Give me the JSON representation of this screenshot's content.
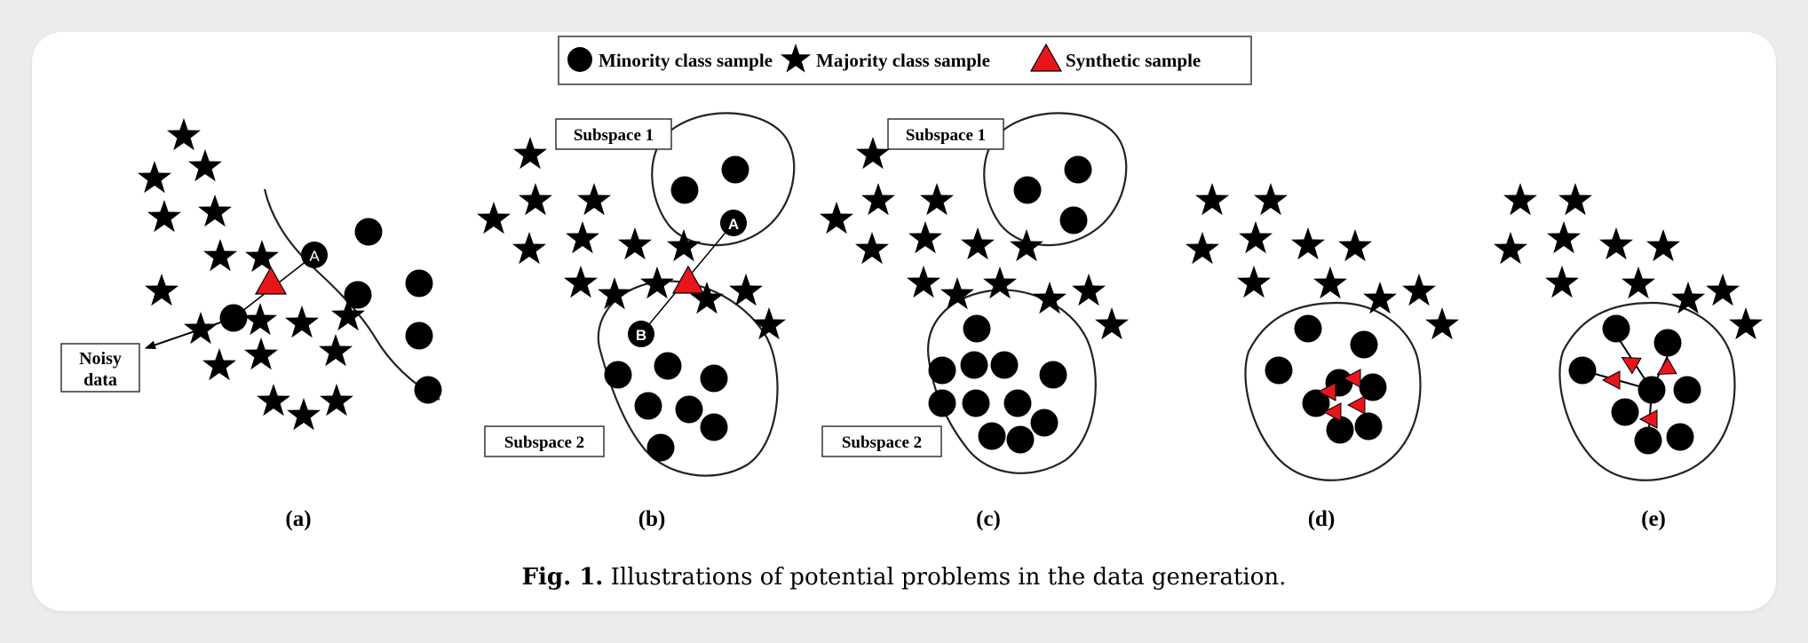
{
  "legend": {
    "minority": "Minority class sample",
    "majority": "Majority class sample",
    "synthetic": "Synthetic sample"
  },
  "panels": {
    "a": {
      "label": "(a)",
      "point_a": "A",
      "noisy": [
        "Noisy",
        "data"
      ]
    },
    "b": {
      "label": "(b)",
      "point_a": "A",
      "point_b": "B",
      "subspace1": "Subspace 1",
      "subspace2": "Subspace 2"
    },
    "c": {
      "label": "(c)",
      "subspace1": "Subspace 1",
      "subspace2": "Subspace 2"
    },
    "d": {
      "label": "(d)"
    },
    "e": {
      "label": "(e)"
    }
  },
  "caption": {
    "prefix": "Fig. 1.",
    "text": " Illustrations of potential problems in the data generation."
  },
  "colors": {
    "marker": "#000000",
    "synthetic": "#e8161b",
    "card": "#ffffff",
    "background": "#ececec"
  }
}
